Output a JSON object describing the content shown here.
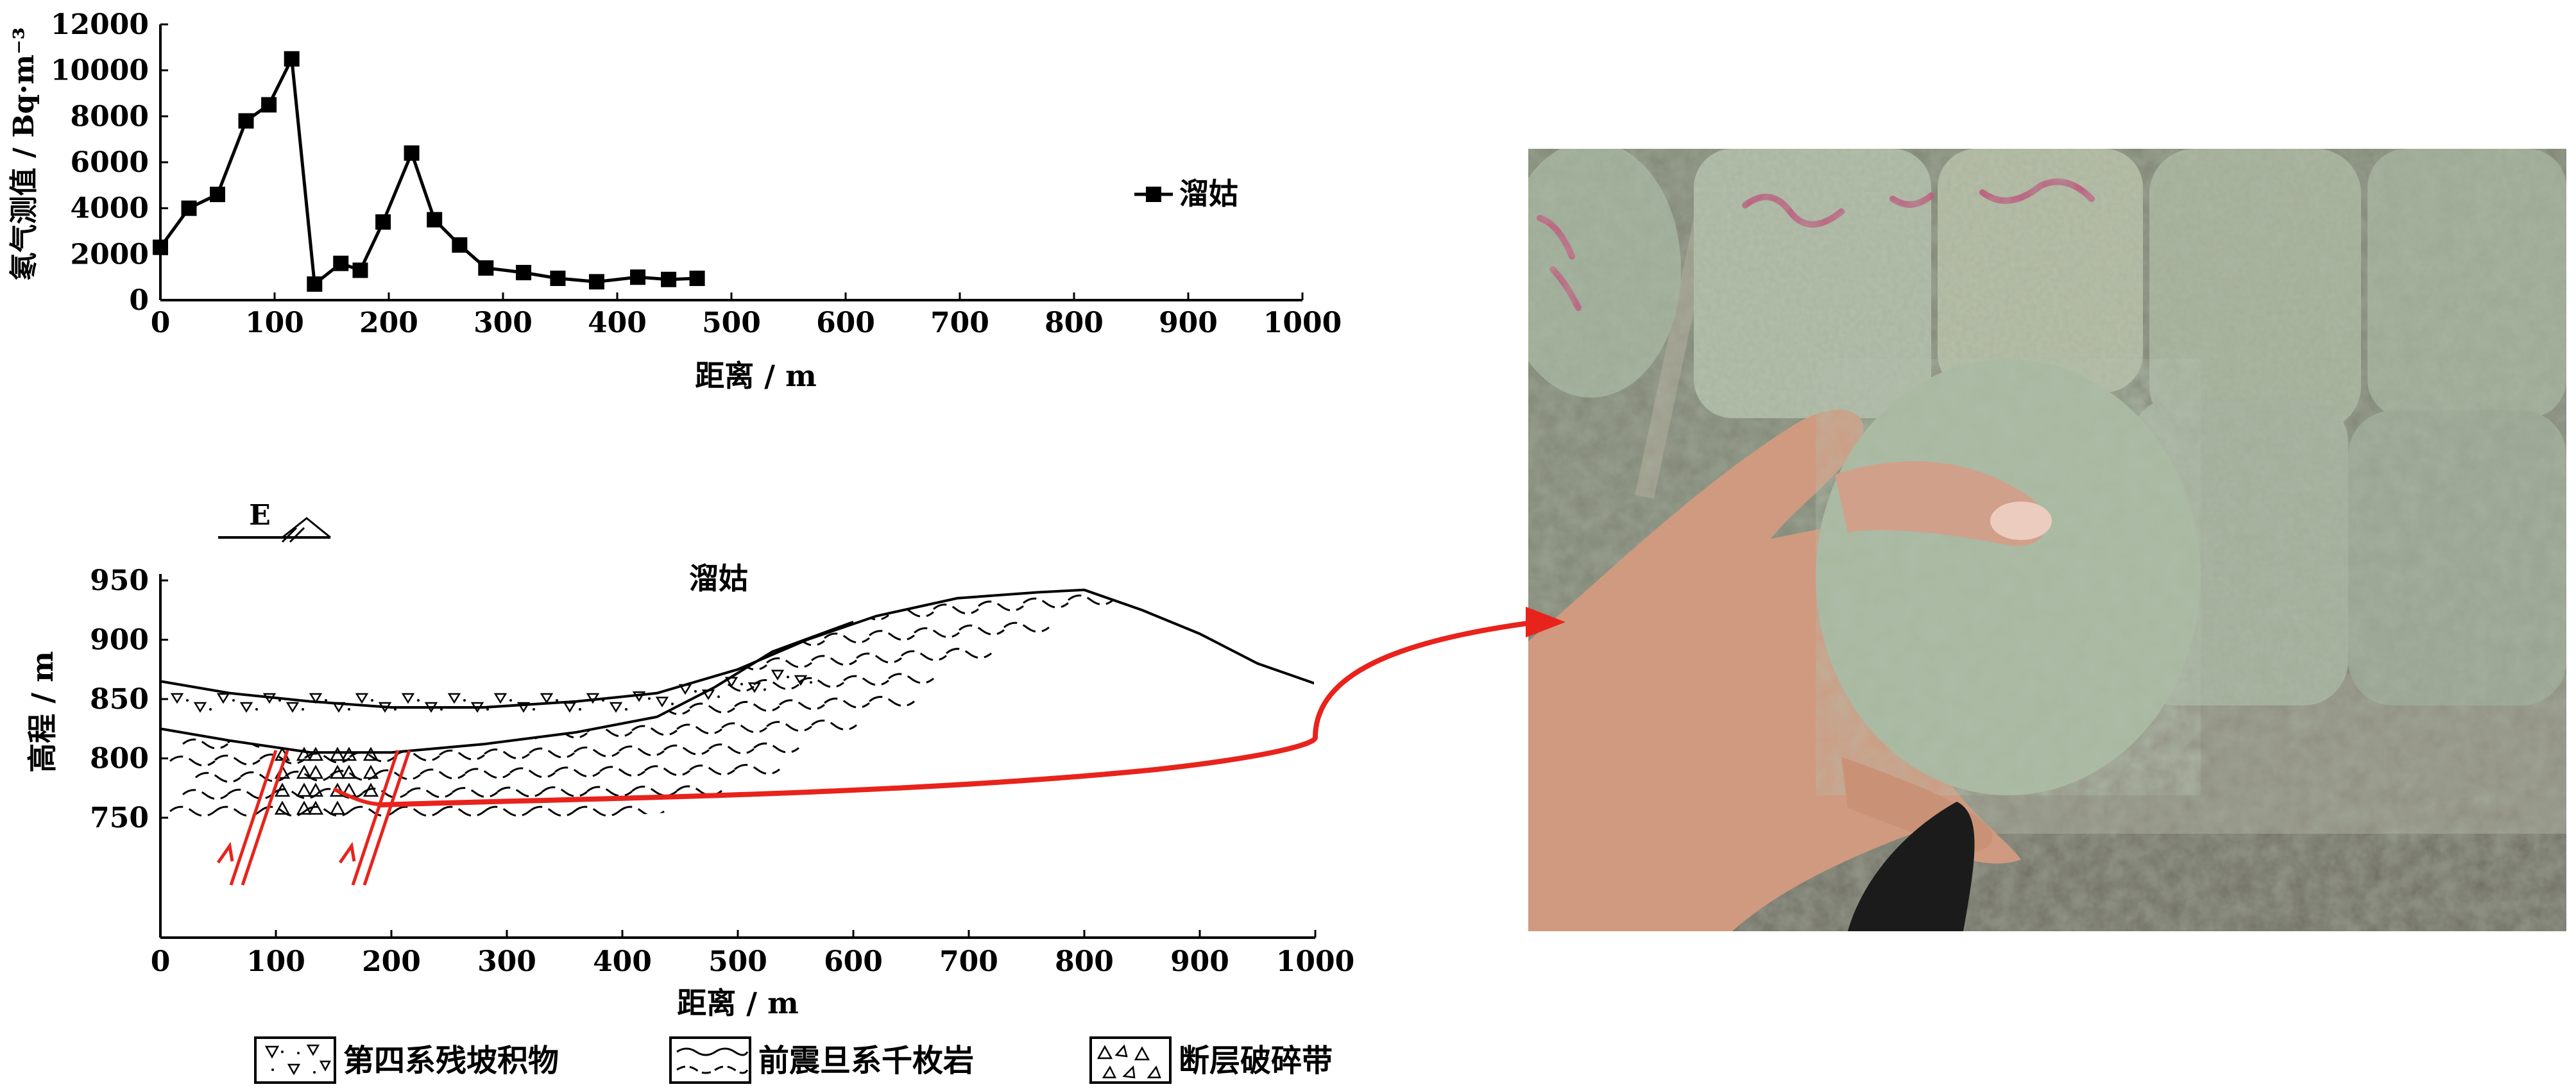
{
  "chart_data": [
    {
      "type": "line",
      "ylabel": "氡气测值 / Bq·m⁻³",
      "xlabel": "距离 / m",
      "xlim": [
        0,
        1000
      ],
      "ylim": [
        0,
        12000
      ],
      "x_ticks": [
        "0",
        "100",
        "200",
        "300",
        "400",
        "500",
        "600",
        "700",
        "800",
        "900",
        "1000"
      ],
      "y_ticks": [
        "0",
        "2000",
        "4000",
        "6000",
        "8000",
        "10000",
        "12000"
      ],
      "legend_position": "right",
      "series": [
        {
          "name": "溜姑",
          "marker": "square",
          "x": [
            0,
            25,
            50,
            75,
            95,
            115,
            135,
            158,
            175,
            195,
            220,
            240,
            262,
            285,
            318,
            348,
            382,
            418,
            445,
            470
          ],
          "y": [
            2300,
            4000,
            4600,
            7800,
            8500,
            10500,
            700,
            1600,
            1300,
            3400,
            6400,
            3500,
            2400,
            1400,
            1200,
            950,
            800,
            1000,
            900,
            950
          ]
        }
      ]
    },
    {
      "type": "cross-section",
      "title": "溜姑",
      "direction_label": "E",
      "ylabel": "高程 / m",
      "xlabel": "距离 / m",
      "xlim": [
        0,
        1000
      ],
      "ylim": [
        680,
        960
      ],
      "x_ticks": [
        "0",
        "100",
        "200",
        "300",
        "400",
        "500",
        "600",
        "700",
        "800",
        "900",
        "1000"
      ],
      "y_ticks": [
        "950",
        "900",
        "850",
        "800",
        "750"
      ],
      "surface_profile": {
        "x": [
          0,
          60,
          130,
          200,
          280,
          360,
          430,
          500,
          560,
          620,
          690,
          760,
          800,
          850,
          900,
          950,
          1000
        ],
        "y": [
          865,
          855,
          848,
          843,
          843,
          848,
          855,
          875,
          900,
          920,
          935,
          940,
          942,
          925,
          905,
          880,
          863
        ]
      },
      "base_of_quaternary": {
        "x": [
          0,
          60,
          130,
          200,
          280,
          360,
          430,
          480,
          530,
          600
        ],
        "y": [
          825,
          815,
          805,
          805,
          812,
          822,
          835,
          860,
          890,
          915
        ]
      },
      "legend": [
        {
          "label": "第四系残坡积物",
          "pattern": "quaternary"
        },
        {
          "label": "前震旦系千枚岩",
          "pattern": "phyllite"
        },
        {
          "label": "断层破碎带",
          "pattern": "fault-breccia"
        }
      ],
      "accent_color": "#e8231c"
    }
  ],
  "photo": {
    "description_icon": "drill-core-photo",
    "colors": {
      "background": "#8a8a78",
      "core": "#a7b8a0",
      "skin": "#d6a285",
      "paint": "#c64a78"
    }
  }
}
